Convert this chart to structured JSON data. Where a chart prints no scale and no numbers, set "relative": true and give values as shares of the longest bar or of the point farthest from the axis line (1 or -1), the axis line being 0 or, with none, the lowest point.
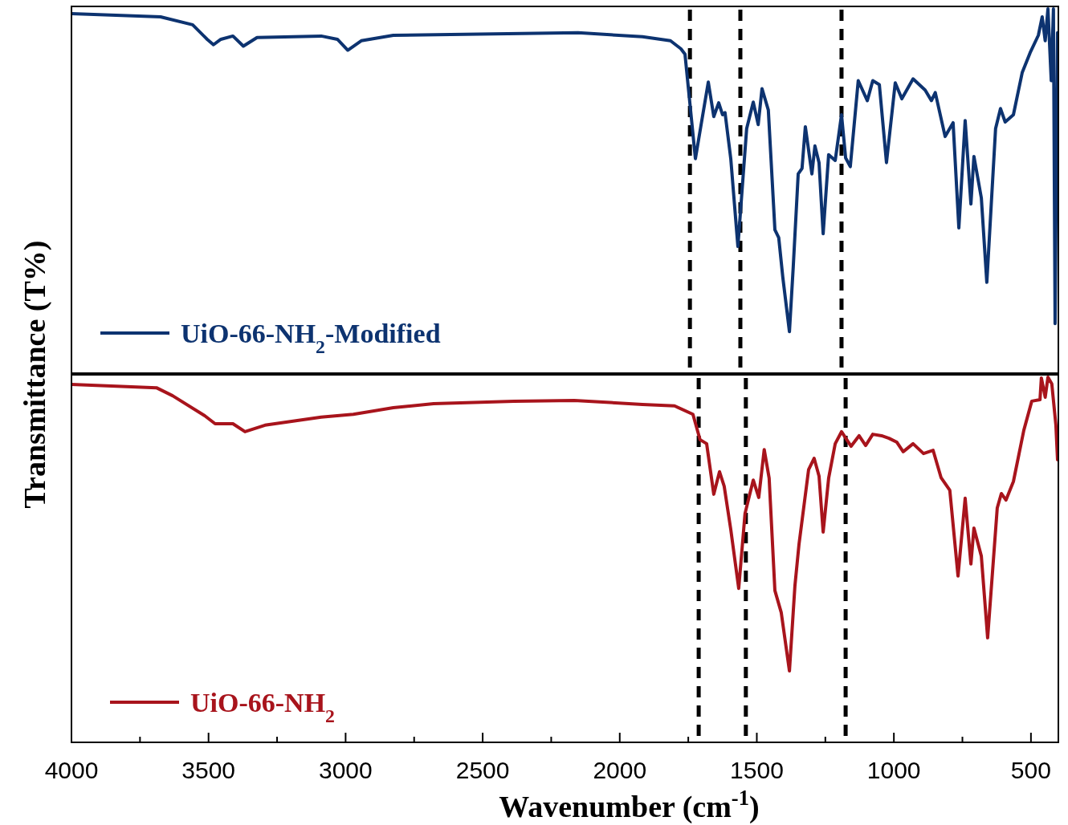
{
  "chart_data": [
    {
      "type": "line",
      "relative": true,
      "ylabel": "Transmittance (T%)",
      "xlim": [
        4000,
        400
      ],
      "tick_labels": false,
      "legend": "bottom left",
      "x": [
        4000,
        3675,
        3558,
        3505,
        3482,
        3455,
        3411,
        3373,
        3323,
        3089,
        3030,
        2992,
        2943,
        2826,
        2357,
        2152,
        1917,
        1815,
        1777,
        1762,
        1724,
        1704,
        1677,
        1657,
        1639,
        1625,
        1616,
        1595,
        1569,
        1537,
        1513,
        1495,
        1481,
        1458,
        1434,
        1420,
        1405,
        1381,
        1367,
        1349,
        1335,
        1323,
        1299,
        1288,
        1273,
        1258,
        1238,
        1214,
        1191,
        1176,
        1159,
        1130,
        1097,
        1077,
        1053,
        1027,
        995,
        971,
        930,
        886,
        863,
        849,
        813,
        784,
        763,
        740,
        719,
        708,
        681,
        661,
        629,
        611,
        594,
        564,
        532,
        503,
        473,
        459,
        448,
        438,
        426,
        418,
        412,
        403
      ],
      "series": [
        {
          "name": "UiO-66-NH$_{2}$-Modified",
          "color": "#0d3370",
          "values": [
            0.987,
            0.978,
            0.956,
            0.916,
            0.901,
            0.916,
            0.925,
            0.897,
            0.921,
            0.925,
            0.916,
            0.886,
            0.912,
            0.927,
            0.932,
            0.934,
            0.923,
            0.912,
            0.89,
            0.875,
            0.587,
            0.677,
            0.798,
            0.703,
            0.741,
            0.708,
            0.714,
            0.587,
            0.345,
            0.67,
            0.743,
            0.681,
            0.78,
            0.721,
            0.391,
            0.369,
            0.259,
            0.11,
            0.29,
            0.545,
            0.56,
            0.675,
            0.545,
            0.622,
            0.576,
            0.38,
            0.598,
            0.582,
            0.708,
            0.589,
            0.565,
            0.802,
            0.747,
            0.802,
            0.791,
            0.576,
            0.796,
            0.752,
            0.807,
            0.776,
            0.747,
            0.769,
            0.648,
            0.686,
            0.396,
            0.692,
            0.462,
            0.593,
            0.479,
            0.246,
            0.67,
            0.725,
            0.688,
            0.708,
            0.824,
            0.879,
            0.927,
            0.978,
            0.912,
            1.0,
            0.802,
            1.0,
            0.132,
            0.934
          ]
        }
      ],
      "ref_lines": [
        {
          "axis": "x",
          "value": 1744,
          "color": "#000000",
          "line_style": "dashed"
        },
        {
          "axis": "x",
          "value": 1560,
          "color": "#000000",
          "line_style": "dashed"
        },
        {
          "axis": "x",
          "value": 1191,
          "color": "#000000",
          "line_style": "dashed"
        }
      ]
    },
    {
      "type": "line",
      "relative": true,
      "xlabel": "Wavenumber (cm$^{-1}$)",
      "xlim": [
        4000,
        400
      ],
      "tick_labels": "x",
      "legend": "bottom left",
      "xticks": [
        4000,
        {
          "value": 3750,
          "label": null
        },
        3500,
        {
          "value": 3250,
          "label": null
        },
        3000,
        {
          "value": 2750,
          "label": null
        },
        2500,
        {
          "value": 2250,
          "label": null
        },
        2000,
        {
          "value": 1750,
          "label": null
        },
        1500,
        {
          "value": 1250,
          "label": null
        },
        1000,
        {
          "value": 750,
          "label": null
        },
        500
      ],
      "x": [
        4000,
        3690,
        3631,
        3514,
        3476,
        3411,
        3367,
        3294,
        3089,
        2972,
        2826,
        2679,
        2386,
        2166,
        1917,
        1800,
        1733,
        1707,
        1683,
        1657,
        1636,
        1619,
        1595,
        1566,
        1543,
        1513,
        1493,
        1473,
        1455,
        1434,
        1411,
        1381,
        1361,
        1346,
        1311,
        1291,
        1273,
        1258,
        1238,
        1214,
        1191,
        1156,
        1127,
        1103,
        1077,
        1045,
        1018,
        989,
        966,
        930,
        892,
        857,
        828,
        796,
        766,
        740,
        719,
        708,
        681,
        658,
        623,
        608,
        591,
        564,
        526,
        497,
        467,
        462,
        448,
        438,
        424,
        409,
        403
      ],
      "series": [
        {
          "name": "UiO-66-NH$_{2}$",
          "color": "#a8141c",
          "values": [
            0.98,
            0.971,
            0.949,
            0.894,
            0.872,
            0.872,
            0.85,
            0.868,
            0.89,
            0.898,
            0.916,
            0.927,
            0.934,
            0.936,
            0.925,
            0.921,
            0.898,
            0.828,
            0.817,
            0.678,
            0.74,
            0.7,
            0.581,
            0.419,
            0.625,
            0.717,
            0.669,
            0.801,
            0.722,
            0.413,
            0.353,
            0.192,
            0.426,
            0.541,
            0.746,
            0.777,
            0.728,
            0.574,
            0.722,
            0.817,
            0.85,
            0.81,
            0.839,
            0.812,
            0.843,
            0.839,
            0.832,
            0.821,
            0.795,
            0.817,
            0.79,
            0.799,
            0.724,
            0.689,
            0.453,
            0.667,
            0.486,
            0.585,
            0.508,
            0.283,
            0.64,
            0.68,
            0.662,
            0.713,
            0.854,
            0.934,
            0.938,
            0.998,
            0.945,
            1.0,
            0.982,
            0.868,
            0.773
          ]
        }
      ],
      "ref_lines": [
        {
          "axis": "x",
          "value": 1712,
          "color": "#000000",
          "line_style": "dashed"
        },
        {
          "axis": "x",
          "value": 1540,
          "color": "#000000",
          "line_style": "dashed"
        },
        {
          "axis": "x",
          "value": 1176,
          "color": "#000000",
          "line_style": "dashed"
        }
      ]
    }
  ]
}
